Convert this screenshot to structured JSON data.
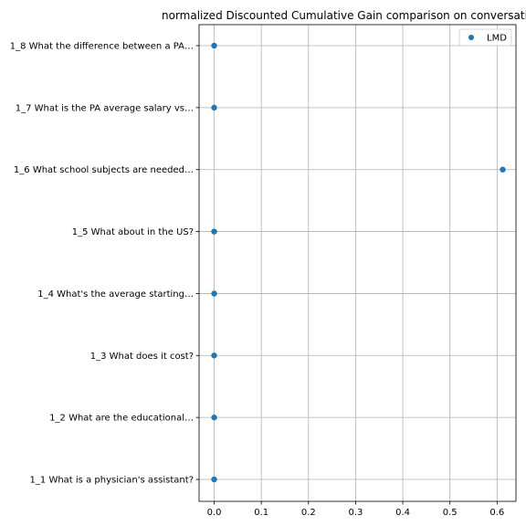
{
  "chart_data": {
    "type": "scatter",
    "title": "normalized Discounted Cumulative Gain comparison on conversation",
    "xlabel": "",
    "ylabel": "",
    "xlim": [
      -0.032,
      0.64
    ],
    "xticks": [
      0.0,
      0.1,
      0.2,
      0.3,
      0.4,
      0.5,
      0.6
    ],
    "xtick_labels": [
      "0.0",
      "0.1",
      "0.2",
      "0.3",
      "0.4",
      "0.5",
      "0.6"
    ],
    "categories": [
      "1_1 What is a physician's assistant?",
      "1_2 What are the educational…",
      "1_3 What does it cost?",
      "1_4 What's the average starting…",
      "1_5 What about in the US?",
      "1_6 What school subjects are needed…",
      "1_7 What is the PA average salary vs…",
      "1_8 What the difference between a PA…"
    ],
    "grid": true,
    "legend_position": "top-right",
    "series": [
      {
        "name": "LMD",
        "color": "#1f77b4",
        "values": [
          0.0,
          0.0,
          0.0,
          0.0,
          0.0,
          0.612,
          0.0,
          0.0
        ]
      }
    ]
  }
}
